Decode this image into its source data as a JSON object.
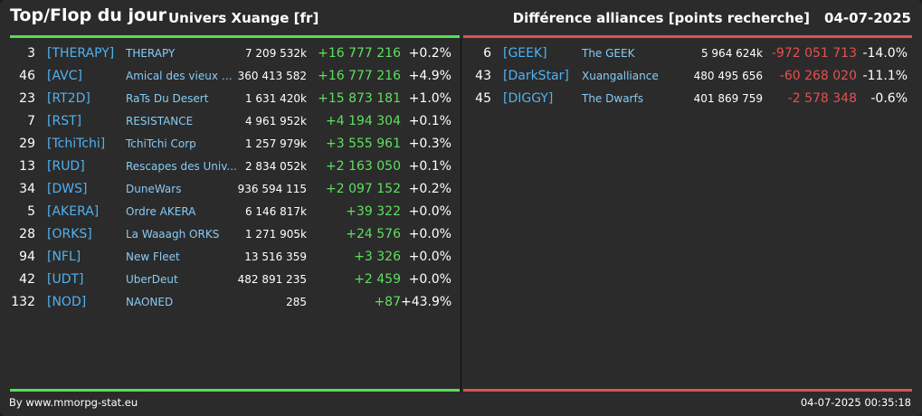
{
  "header": {
    "title": "Top/Flop du jour",
    "universe": "Univers Xuange [fr]",
    "metric": "Différence alliances [points recherche]",
    "date": "04-07-2025"
  },
  "colors": {
    "top": "#55e055",
    "flop": "#e05050",
    "tag": "#4fb2f0",
    "name": "#87cbf5"
  },
  "top": [
    {
      "rank": "3",
      "tag": "[THERAPY]",
      "name": "THERAPY",
      "points": "7 209 532k",
      "diff": "+16 777 216",
      "pct": "+0.2%"
    },
    {
      "rank": "46",
      "tag": "[AVC]",
      "name": "Amical des vieux co...",
      "points": "360 413 582",
      "diff": "+16 777 216",
      "pct": "+4.9%"
    },
    {
      "rank": "23",
      "tag": "[RT2D]",
      "name": "RaTs Du Desert",
      "points": "1 631 420k",
      "diff": "+15 873 181",
      "pct": "+1.0%"
    },
    {
      "rank": "7",
      "tag": "[RST]",
      "name": "RESISTANCE",
      "points": "4 961 952k",
      "diff": "+4 194 304",
      "pct": "+0.1%"
    },
    {
      "rank": "29",
      "tag": "[TchiTchi]",
      "name": "TchiTchi Corp",
      "points": "1 257 979k",
      "diff": "+3 555 961",
      "pct": "+0.3%"
    },
    {
      "rank": "13",
      "tag": "[RUD]",
      "name": "Rescapes des Univ...",
      "points": "2 834 052k",
      "diff": "+2 163 050",
      "pct": "+0.1%"
    },
    {
      "rank": "34",
      "tag": "[DWS]",
      "name": "DuneWars",
      "points": "936 594 115",
      "diff": "+2 097 152",
      "pct": "+0.2%"
    },
    {
      "rank": "5",
      "tag": "[AKERA]",
      "name": "Ordre AKERA",
      "points": "6 146 817k",
      "diff": "+39 322",
      "pct": "+0.0%"
    },
    {
      "rank": "28",
      "tag": "[ORKS]",
      "name": "La Waaagh ORKS",
      "points": "1 271 905k",
      "diff": "+24 576",
      "pct": "+0.0%"
    },
    {
      "rank": "94",
      "tag": "[NFL]",
      "name": "New Fleet",
      "points": "13 516 359",
      "diff": "+3 326",
      "pct": "+0.0%"
    },
    {
      "rank": "42",
      "tag": "[UDT]",
      "name": "UberDeut",
      "points": "482 891 235",
      "diff": "+2 459",
      "pct": "+0.0%"
    },
    {
      "rank": "132",
      "tag": "[NOD]",
      "name": "NAONED",
      "points": "285",
      "diff": "+87",
      "pct": "+43.9%"
    }
  ],
  "flop": [
    {
      "rank": "6",
      "tag": "[GEEK]",
      "name": "The GEEK",
      "points": "5 964 624k",
      "diff": "-972 051 713",
      "pct": "-14.0%"
    },
    {
      "rank": "43",
      "tag": "[DarkStar]",
      "name": "Xuangalliance",
      "points": "480 495 656",
      "diff": "-60 268 020",
      "pct": "-11.1%"
    },
    {
      "rank": "45",
      "tag": "[DIGGY]",
      "name": "The Dwarfs",
      "points": "401 869 759",
      "diff": "-2 578 348",
      "pct": "-0.6%"
    }
  ],
  "footer": {
    "credit": "By www.mmorpg-stat.eu",
    "timestamp": "04-07-2025 00:35:18"
  }
}
